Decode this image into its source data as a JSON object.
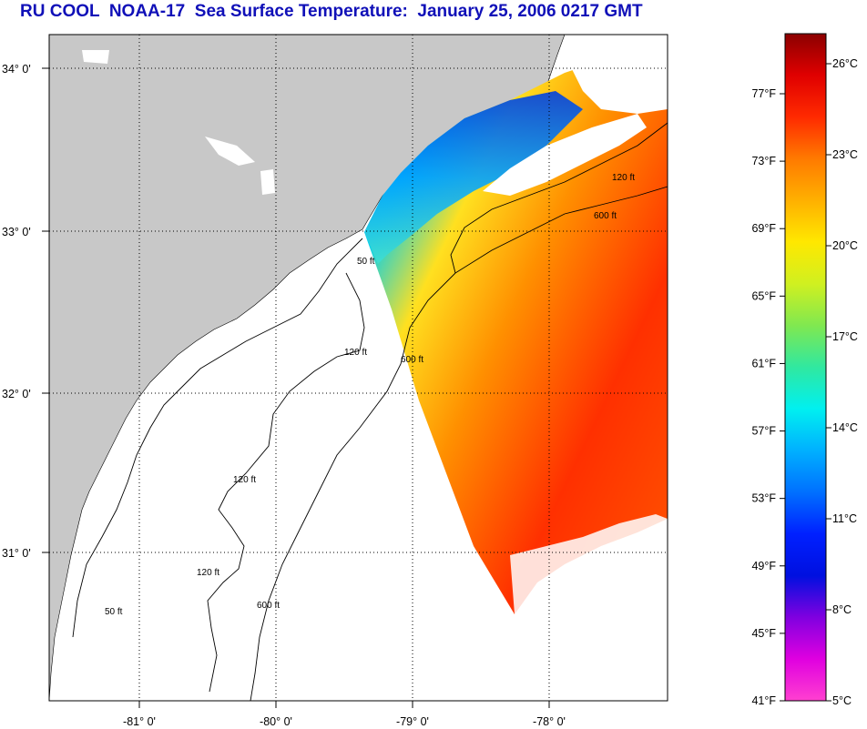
{
  "title": "RU COOL  NOAA-17  Sea Surface Temperature:  January 25, 2006 0217 GMT",
  "map": {
    "latitude_labels": [
      "34° 0'",
      "33° 0'",
      "32° 0'",
      "31° 0'"
    ],
    "longitude_labels": [
      "-81° 0'",
      "-80° 0'",
      "-79° 0'",
      "-78° 0'"
    ],
    "contour_labels": {
      "c50": "50 ft",
      "c120": "120 ft",
      "c600": "600 ft"
    },
    "colors": {
      "land": "#c8c8c8",
      "ocean_nodata": "#ffffff",
      "grid": "#000000",
      "contour": "#000000"
    }
  },
  "colorbar": {
    "fahrenheit_labels": [
      "77°F",
      "73°F",
      "69°F",
      "65°F",
      "61°F",
      "57°F",
      "53°F",
      "49°F",
      "45°F",
      "41°F"
    ],
    "celsius_labels": [
      "26°C",
      "23°C",
      "20°C",
      "17°C",
      "14°C",
      "11°C",
      "8°C",
      "5°C"
    ],
    "gradient_stops": [
      "#8b0000",
      "#e00000",
      "#ff2a00",
      "#ff7a00",
      "#ffb000",
      "#ffe800",
      "#d0f020",
      "#80e850",
      "#30e8a0",
      "#00f0f0",
      "#00b0ff",
      "#0070ff",
      "#0020ff",
      "#0010e0",
      "#8000e0",
      "#e000e0",
      "#ff40d0"
    ]
  }
}
